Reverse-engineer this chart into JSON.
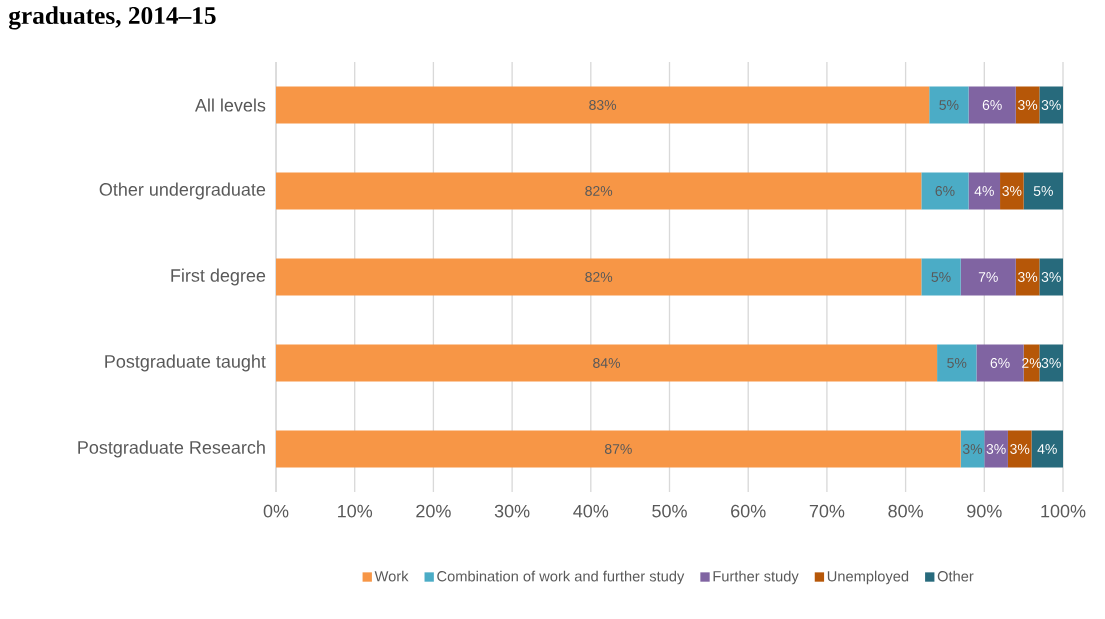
{
  "chart_data": {
    "type": "bar",
    "orientation": "horizontal",
    "stacked": true,
    "title": "graduates, 2014–15",
    "categories": [
      "All levels",
      "Other undergraduate",
      "First degree",
      "Postgraduate taught",
      "Postgraduate Research"
    ],
    "series": [
      {
        "name": "Work",
        "color": "#f79646",
        "values": [
          83,
          82,
          82,
          84,
          87
        ],
        "value_labels": [
          "83%",
          "82%",
          "82%",
          "84%",
          "87%"
        ]
      },
      {
        "name": "Combination of work and further study",
        "color": "#4bacc6",
        "values": [
          5,
          6,
          5,
          5,
          3
        ],
        "value_labels": [
          "5%",
          "6%",
          "5%",
          "5%",
          "3%"
        ]
      },
      {
        "name": "Further study",
        "color": "#8064a2",
        "values": [
          6,
          4,
          7,
          6,
          3
        ],
        "value_labels": [
          "6%",
          "4%",
          "7%",
          "6%",
          "3%"
        ]
      },
      {
        "name": "Unemployed",
        "color": "#b65708",
        "values": [
          3,
          3,
          3,
          2,
          3
        ],
        "value_labels": [
          "3%",
          "3%",
          "3%",
          "2%",
          "3%"
        ]
      },
      {
        "name": "Other",
        "color": "#276a7c",
        "values": [
          3,
          5,
          3,
          3,
          4
        ],
        "value_labels": [
          "3%",
          "5%",
          "3%",
          "3%",
          "4%"
        ]
      }
    ],
    "xlim": [
      0,
      100
    ],
    "xticks": [
      {
        "value": 0,
        "label": "0%"
      },
      {
        "value": 10,
        "label": "10%"
      },
      {
        "value": 20,
        "label": "20%"
      },
      {
        "value": 30,
        "label": "30%"
      },
      {
        "value": 40,
        "label": "40%"
      },
      {
        "value": 50,
        "label": "50%"
      },
      {
        "value": 60,
        "label": "60%"
      },
      {
        "value": 70,
        "label": "70%"
      },
      {
        "value": 80,
        "label": "80%"
      },
      {
        "value": 90,
        "label": "90%"
      },
      {
        "value": 100,
        "label": "100%"
      }
    ],
    "grid": "x",
    "legend": "bottom"
  }
}
